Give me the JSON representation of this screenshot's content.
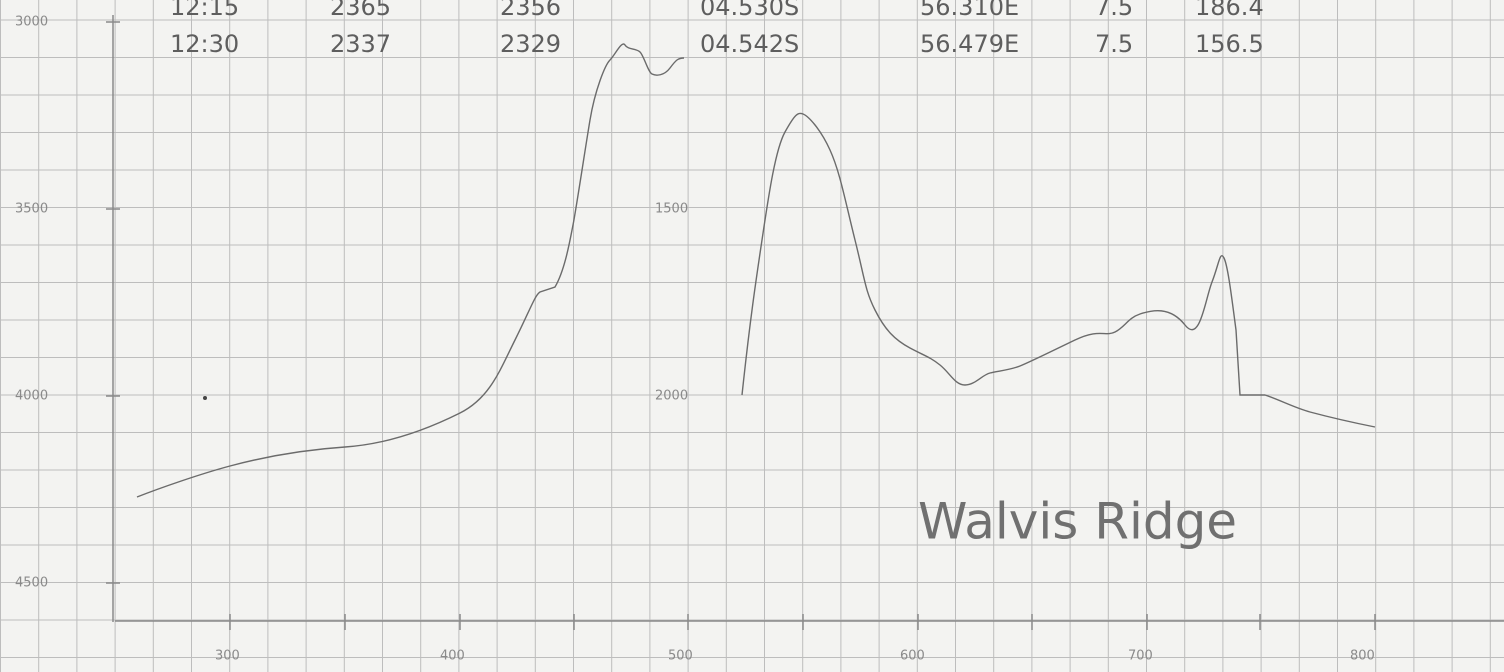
{
  "table": {
    "rows": [
      [
        "12:15",
        "2365",
        "2356",
        "04.530S",
        "56.310E",
        "7.5",
        "186.4"
      ],
      [
        "12:30",
        "2337",
        "2329",
        "04.542S",
        "56.479E",
        "7.5",
        "156.5"
      ]
    ]
  },
  "left_axis": [
    "3000",
    "3500",
    "4000",
    "4500"
  ],
  "middle_axis": [
    "1500",
    "2000"
  ],
  "time_axis": [
    "300",
    "400",
    "500",
    "600",
    "700",
    "800"
  ],
  "annotation": "Walvis Ridge"
}
